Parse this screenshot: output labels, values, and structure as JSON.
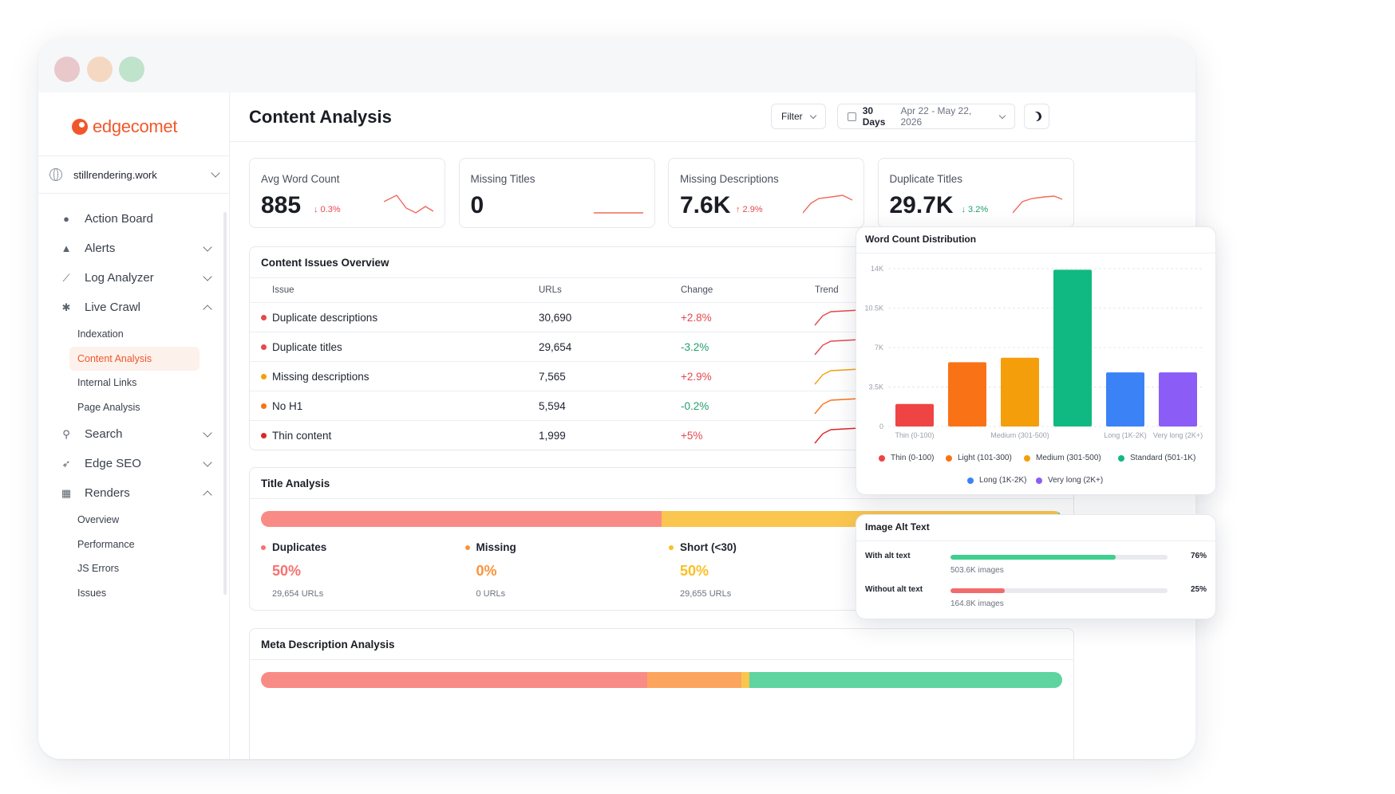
{
  "app": {
    "logo_text": "edgecomet"
  },
  "window_controls": {
    "colors": [
      "#e8c8ca",
      "#f4d8c2",
      "#bfe3cb"
    ]
  },
  "sidebar": {
    "site": "stillrendering.work",
    "items": [
      {
        "label": "Action Board",
        "icon": "lightbulb-icon",
        "expand": "none"
      },
      {
        "label": "Alerts",
        "icon": "bell-icon",
        "expand": "down"
      },
      {
        "label": "Log Analyzer",
        "icon": "chart-line-icon",
        "expand": "down"
      },
      {
        "label": "Live Crawl",
        "icon": "bug-icon",
        "expand": "up",
        "children": [
          "Indexation",
          "Content Analysis",
          "Internal Links",
          "Page Analysis"
        ]
      },
      {
        "label": "Search",
        "icon": "search-icon",
        "expand": "down"
      },
      {
        "label": "Edge SEO",
        "icon": "rocket-icon",
        "expand": "down"
      },
      {
        "label": "Renders",
        "icon": "renders-icon",
        "expand": "up",
        "children": [
          "Overview",
          "Performance",
          "JS Errors",
          "Issues"
        ]
      }
    ],
    "active": "Content Analysis"
  },
  "header": {
    "title": "Content Analysis",
    "filter_label": "Filter",
    "date_label": "30 Days",
    "date_range": "Apr 22 - May 22, 2026"
  },
  "kpis": [
    {
      "label": "Avg Word Count",
      "value": "885",
      "delta": "↓ 0.3%",
      "delta_color": "#e5484d"
    },
    {
      "label": "Missing Titles",
      "value": "0",
      "delta": "",
      "delta_color": "#e5484d"
    },
    {
      "label": "Missing Descriptions",
      "value": "7.6K",
      "delta": "↑ 2.9%",
      "delta_color": "#e5484d"
    },
    {
      "label": "Duplicate Titles",
      "value": "29.7K",
      "delta": "↓ 3.2%",
      "delta_color": "#22a06b"
    }
  ],
  "issues": {
    "title": "Content Issues Overview",
    "columns": [
      "Issue",
      "URLs",
      "Change",
      "Trend"
    ],
    "rows": [
      {
        "issue": "Duplicate descriptions",
        "urls": "30,690",
        "change": "+2.8%",
        "dot": "#e5484d",
        "change_color": "#e5484d",
        "trend_color": "#e5484d"
      },
      {
        "issue": "Duplicate titles",
        "urls": "29,654",
        "change": "-3.2%",
        "dot": "#e5484d",
        "change_color": "#22a06b",
        "trend_color": "#e5484d"
      },
      {
        "issue": "Missing descriptions",
        "urls": "7,565",
        "change": "+2.9%",
        "dot": "#f59e0b",
        "change_color": "#e5484d",
        "trend_color": "#f59e0b"
      },
      {
        "issue": "No H1",
        "urls": "5,594",
        "change": "-0.2%",
        "dot": "#f97316",
        "change_color": "#22a06b",
        "trend_color": "#f97316"
      },
      {
        "issue": "Thin content",
        "urls": "1,999",
        "change": "+5%",
        "dot": "#dc2626",
        "change_color": "#e5484d",
        "trend_color": "#dc2626"
      }
    ]
  },
  "title_analysis": {
    "title": "Title Analysis",
    "bar": [
      {
        "share": 50,
        "color": "#f98b86"
      },
      {
        "share": 49.5,
        "color": "#fbc64f"
      },
      {
        "share": 0.5,
        "color": "#5fd4a0"
      }
    ],
    "groups": [
      {
        "label": "Duplicates",
        "pct": "50%",
        "urls": "29,654 URLs",
        "color": "#f87171"
      },
      {
        "label": "Missing",
        "pct": "0%",
        "urls": "0 URLs",
        "color": "#fb923c"
      },
      {
        "label": "Short (<30)",
        "pct": "50%",
        "urls": "29,655 URLs",
        "color": "#fbbf24"
      }
    ],
    "hidden_dot_color": "#34d399"
  },
  "meta_analysis": {
    "title": "Meta Description Analysis",
    "bar": [
      {
        "share": 48.2,
        "color": "#f98b86"
      },
      {
        "share": 11.8,
        "color": "#fca55e"
      },
      {
        "share": 1.0,
        "color": "#fbc64f"
      },
      {
        "share": 39.0,
        "color": "#5fd4a0"
      }
    ]
  },
  "word_count": {
    "title": "Word Count Distribution",
    "chart_data": {
      "type": "bar",
      "categories": [
        "Thin (0-100)",
        "Light (101-300)",
        "Medium (301-500)",
        "Standard (501-1K)",
        "Long (1K-2K)",
        "Very long (2K+)"
      ],
      "tick_labels_x": [
        "Thin (0-100)",
        "",
        "Medium (301-500)",
        "",
        "Long (1K-2K)",
        "Very long (2K+)"
      ],
      "values": [
        2000,
        5700,
        6100,
        13900,
        4800,
        4800
      ],
      "colors": [
        "#ef4444",
        "#f97316",
        "#f59e0b",
        "#10b981",
        "#3b82f6",
        "#8b5cf6"
      ],
      "ylim": [
        0,
        14000
      ],
      "yticks": [
        0,
        3500,
        7000,
        10500,
        14000
      ],
      "ytick_labels": [
        "0",
        "3.5K",
        "7K",
        "10.5K",
        "14K"
      ],
      "legend": [
        "Thin (0-100)",
        "Light (101-300)",
        "Medium (301-500)",
        "Standard (501-1K)",
        "Long (1K-2K)",
        "Very long (2K+)"
      ],
      "legend_position": "bottom",
      "grid": true
    }
  },
  "alt_text": {
    "title": "Image Alt Text",
    "rows": [
      {
        "label": "With alt text",
        "pct": "76%",
        "fill": 76,
        "sub": "503.6K images",
        "color": "#3fcf8e"
      },
      {
        "label": "Without alt text",
        "pct": "25%",
        "fill": 25,
        "sub": "164.8K images",
        "color": "#f26b6b"
      }
    ]
  }
}
